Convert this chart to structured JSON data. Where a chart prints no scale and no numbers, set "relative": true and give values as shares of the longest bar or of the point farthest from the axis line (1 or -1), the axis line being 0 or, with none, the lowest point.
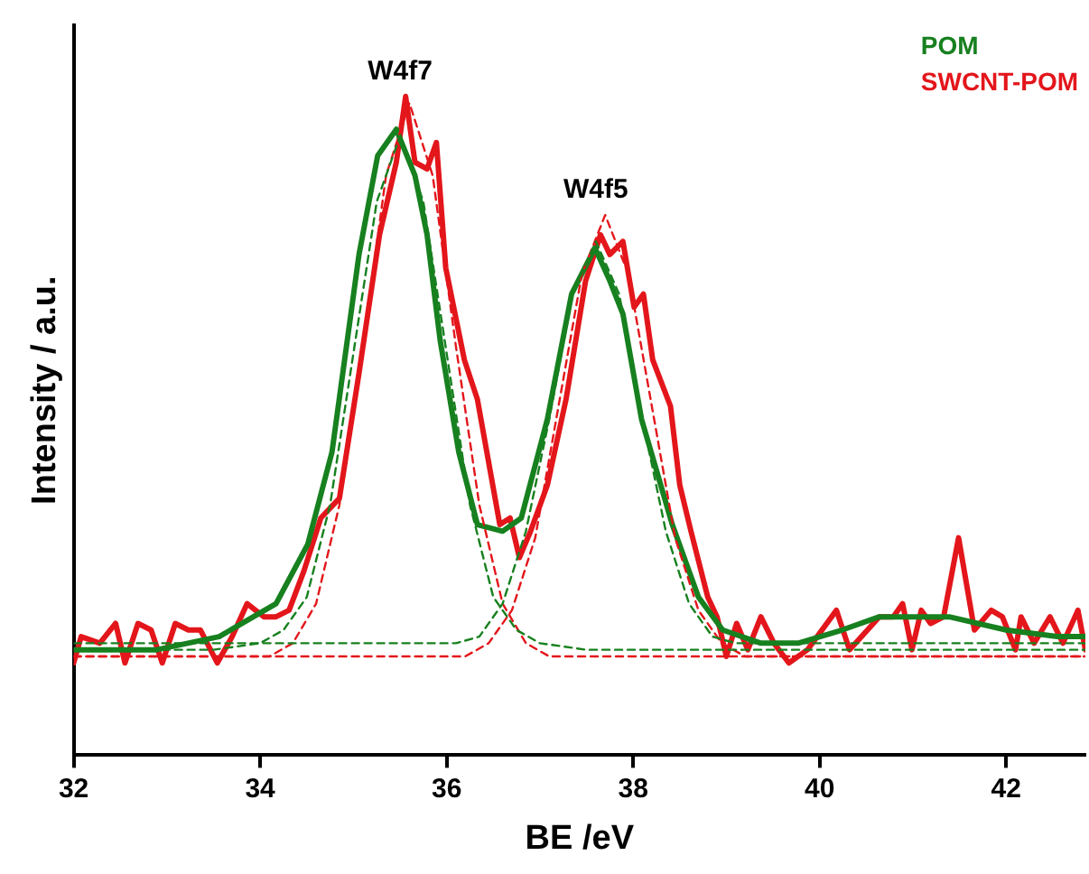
{
  "chart_data": {
    "type": "line",
    "relative": true,
    "xlabel": "BE /eV",
    "ylabel": "Intensity / a.u.",
    "xlim": [
      32,
      42.85
    ],
    "xticks": [
      32,
      34,
      36,
      38,
      40,
      42
    ],
    "marker": "none",
    "legend": "top right",
    "annotations": [
      {
        "text": "W4f7",
        "x": 35.5,
        "y": 1.0
      },
      {
        "text": "W4f5",
        "x": 37.6,
        "y": 0.82
      }
    ],
    "series": [
      {
        "name": "POM",
        "color": "#17801f",
        "line_style": "solid",
        "x": [
          32.0,
          32.89,
          33.56,
          34.17,
          34.51,
          34.77,
          35.06,
          35.26,
          35.46,
          35.66,
          35.79,
          35.93,
          36.13,
          36.33,
          36.6,
          36.8,
          37.08,
          37.34,
          37.59,
          37.75,
          37.89,
          38.09,
          38.42,
          38.7,
          38.96,
          39.37,
          39.77,
          40.24,
          40.64,
          40.99,
          41.39,
          42.0,
          42.55,
          42.85
        ],
        "values": [
          0.16,
          0.16,
          0.18,
          0.23,
          0.32,
          0.46,
          0.76,
          0.91,
          0.95,
          0.88,
          0.79,
          0.63,
          0.46,
          0.35,
          0.34,
          0.36,
          0.51,
          0.7,
          0.77,
          0.72,
          0.67,
          0.51,
          0.35,
          0.24,
          0.19,
          0.17,
          0.17,
          0.19,
          0.21,
          0.21,
          0.21,
          0.19,
          0.18,
          0.18
        ]
      },
      {
        "name": "SWCNT-POM",
        "color": "#e3161b",
        "line_style": "solid",
        "x": [
          32.0,
          32.08,
          32.28,
          32.45,
          32.55,
          32.69,
          32.83,
          32.95,
          33.09,
          33.23,
          33.36,
          33.54,
          33.7,
          33.86,
          34.04,
          34.17,
          34.31,
          34.47,
          34.65,
          34.85,
          35.06,
          35.28,
          35.46,
          35.56,
          35.66,
          35.79,
          35.89,
          35.99,
          36.19,
          36.33,
          36.57,
          36.68,
          36.78,
          36.9,
          37.08,
          37.28,
          37.49,
          37.65,
          37.75,
          37.89,
          38.01,
          38.11,
          38.21,
          38.4,
          38.5,
          38.62,
          38.8,
          38.9,
          39.0,
          39.11,
          39.23,
          39.37,
          39.51,
          39.67,
          39.87,
          40.18,
          40.32,
          40.64,
          40.79,
          40.89,
          40.99,
          41.09,
          41.19,
          41.33,
          41.49,
          41.66,
          41.84,
          41.96,
          42.1,
          42.16,
          42.3,
          42.47,
          42.61,
          42.77,
          42.85
        ],
        "values": [
          0.14,
          0.18,
          0.17,
          0.2,
          0.14,
          0.2,
          0.19,
          0.14,
          0.2,
          0.19,
          0.19,
          0.14,
          0.18,
          0.23,
          0.21,
          0.21,
          0.22,
          0.28,
          0.36,
          0.39,
          0.58,
          0.79,
          0.9,
          1.0,
          0.9,
          0.89,
          0.93,
          0.74,
          0.6,
          0.54,
          0.35,
          0.36,
          0.3,
          0.34,
          0.41,
          0.54,
          0.72,
          0.79,
          0.76,
          0.78,
          0.68,
          0.7,
          0.6,
          0.53,
          0.41,
          0.34,
          0.24,
          0.21,
          0.15,
          0.2,
          0.16,
          0.21,
          0.17,
          0.14,
          0.16,
          0.22,
          0.16,
          0.21,
          0.21,
          0.23,
          0.16,
          0.22,
          0.2,
          0.21,
          0.33,
          0.19,
          0.22,
          0.21,
          0.16,
          0.21,
          0.17,
          0.21,
          0.17,
          0.22,
          0.16
        ]
      },
      {
        "color": "#17801f",
        "line_style": "dashed",
        "x": [
          32,
          33.5,
          34.0,
          34.25,
          34.5,
          34.75,
          35.0,
          35.25,
          35.5,
          35.75,
          36.0,
          36.25,
          36.5,
          36.75,
          37.0,
          37.5,
          42.85
        ],
        "values": [
          0.16,
          0.16,
          0.17,
          0.19,
          0.24,
          0.38,
          0.61,
          0.84,
          0.94,
          0.84,
          0.61,
          0.38,
          0.24,
          0.19,
          0.17,
          0.16,
          0.16
        ]
      },
      {
        "color": "#17801f",
        "line_style": "dashed",
        "x": [
          32,
          35.6,
          36.1,
          36.35,
          36.6,
          36.85,
          37.1,
          37.35,
          37.6,
          37.85,
          38.1,
          38.35,
          38.6,
          38.85,
          39.1,
          42.85
        ],
        "values": [
          0.17,
          0.17,
          0.17,
          0.18,
          0.23,
          0.34,
          0.51,
          0.7,
          0.78,
          0.7,
          0.51,
          0.34,
          0.23,
          0.18,
          0.17,
          0.17
        ]
      },
      {
        "color": "#e3161b",
        "line_style": "dashed",
        "x": [
          32,
          33.6,
          34.1,
          34.35,
          34.6,
          34.85,
          35.1,
          35.35,
          35.6,
          35.85,
          36.1,
          36.35,
          36.6,
          36.85,
          37.1,
          37.6,
          42.85
        ],
        "values": [
          0.15,
          0.15,
          0.15,
          0.17,
          0.23,
          0.38,
          0.62,
          0.88,
          0.99,
          0.88,
          0.62,
          0.38,
          0.23,
          0.17,
          0.15,
          0.15,
          0.15
        ]
      },
      {
        "color": "#e3161b",
        "line_style": "dashed",
        "x": [
          32,
          35.7,
          36.2,
          36.45,
          36.7,
          36.95,
          37.2,
          37.45,
          37.7,
          37.95,
          38.2,
          38.45,
          38.7,
          38.95,
          39.2,
          42.85
        ],
        "values": [
          0.15,
          0.15,
          0.15,
          0.17,
          0.22,
          0.33,
          0.53,
          0.73,
          0.82,
          0.73,
          0.53,
          0.33,
          0.22,
          0.17,
          0.15,
          0.15
        ]
      }
    ]
  }
}
